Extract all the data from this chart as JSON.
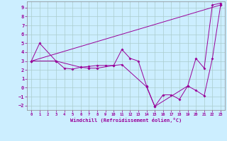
{
  "xlabel": "Windchill (Refroidissement éolien,°C)",
  "background_color": "#cceeff",
  "grid_color": "#aacccc",
  "line_color": "#990099",
  "xlim": [
    -0.5,
    23.5
  ],
  "ylim": [
    -2.5,
    9.7
  ],
  "yticks": [
    -2,
    -1,
    0,
    1,
    2,
    3,
    4,
    5,
    6,
    7,
    8,
    9
  ],
  "xticks": [
    0,
    1,
    2,
    3,
    4,
    5,
    6,
    7,
    8,
    9,
    10,
    11,
    12,
    13,
    14,
    15,
    16,
    17,
    18,
    19,
    20,
    21,
    22,
    23
  ],
  "series1_x": [
    0,
    1,
    3,
    4,
    5,
    6,
    7,
    8,
    9,
    10,
    11,
    12,
    13,
    14,
    15,
    16,
    17,
    18,
    19,
    20,
    21,
    22,
    23
  ],
  "series1_y": [
    3.0,
    5.0,
    3.0,
    2.2,
    2.1,
    2.3,
    2.4,
    2.5,
    2.5,
    2.5,
    4.3,
    3.3,
    3.0,
    0.2,
    -2.1,
    -0.8,
    -0.8,
    -1.3,
    0.2,
    3.3,
    2.2,
    9.3,
    9.5
  ],
  "series2_x": [
    0,
    3,
    6,
    7,
    8,
    10,
    11,
    14,
    15,
    19,
    20,
    21,
    22,
    23
  ],
  "series2_y": [
    3.0,
    3.0,
    2.3,
    2.2,
    2.2,
    2.5,
    2.6,
    0.1,
    -2.1,
    0.2,
    -0.3,
    -0.9,
    3.3,
    9.3
  ],
  "series3_x": [
    0,
    23
  ],
  "series3_y": [
    3.0,
    9.3
  ]
}
